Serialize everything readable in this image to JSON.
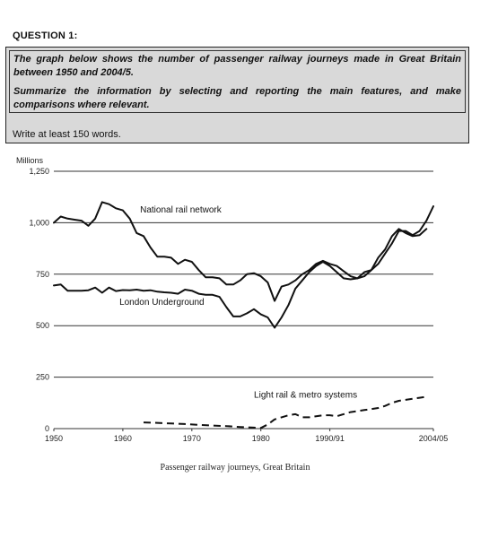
{
  "question": {
    "heading": "QUESTION 1:",
    "prompt_line1": "The graph below shows the number of passenger railway journeys made in Great Britain between 1950 and 2004/5.",
    "prompt_line2": "Summarize the information by selecting and reporting the main features, and make comparisons where relevant.",
    "instruction": "Write at least 150 words."
  },
  "chart_data": {
    "type": "line",
    "title": "Passenger railway journeys, Great Britain",
    "ylabel": "Millions",
    "ylim": [
      0,
      1250
    ],
    "xlim": [
      1950,
      2005
    ],
    "y_ticks": [
      0,
      250,
      500,
      750,
      1000,
      1250
    ],
    "y_tick_labels": [
      "0",
      "250",
      "500",
      "750",
      "1,000",
      "1,250"
    ],
    "x_ticks": [
      1950,
      1960,
      1970,
      1980,
      1990,
      2005
    ],
    "x_tick_labels": [
      "1950",
      "1960",
      "1970",
      "1980",
      "1990/91",
      "2004/05"
    ],
    "grid": "horizontal",
    "legend": "none",
    "series": [
      {
        "name": "National rail network",
        "style": "solid",
        "color": "#111111",
        "points": [
          [
            1950,
            1000
          ],
          [
            1951,
            1030
          ],
          [
            1952,
            1020
          ],
          [
            1953,
            1015
          ],
          [
            1954,
            1010
          ],
          [
            1955,
            985
          ],
          [
            1956,
            1020
          ],
          [
            1957,
            1100
          ],
          [
            1958,
            1090
          ],
          [
            1959,
            1070
          ],
          [
            1960,
            1060
          ],
          [
            1961,
            1020
          ],
          [
            1962,
            950
          ],
          [
            1963,
            935
          ],
          [
            1964,
            880
          ],
          [
            1965,
            835
          ],
          [
            1966,
            835
          ],
          [
            1967,
            830
          ],
          [
            1968,
            800
          ],
          [
            1969,
            820
          ],
          [
            1970,
            810
          ],
          [
            1971,
            770
          ],
          [
            1972,
            735
          ],
          [
            1973,
            735
          ],
          [
            1974,
            730
          ],
          [
            1975,
            700
          ],
          [
            1976,
            700
          ],
          [
            1977,
            720
          ],
          [
            1978,
            750
          ],
          [
            1979,
            755
          ],
          [
            1980,
            740
          ],
          [
            1981,
            710
          ],
          [
            1982,
            620
          ],
          [
            1983,
            690
          ],
          [
            1984,
            700
          ],
          [
            1985,
            720
          ],
          [
            1986,
            750
          ],
          [
            1987,
            770
          ],
          [
            1988,
            800
          ],
          [
            1989,
            815
          ],
          [
            1990,
            800
          ],
          [
            1991,
            790
          ],
          [
            1992,
            765
          ],
          [
            1993,
            740
          ],
          [
            1994,
            730
          ],
          [
            1995,
            740
          ],
          [
            1996,
            770
          ],
          [
            1997,
            800
          ],
          [
            1998,
            850
          ],
          [
            1999,
            900
          ],
          [
            2000,
            960
          ],
          [
            2001,
            960
          ],
          [
            2002,
            940
          ],
          [
            2003,
            960
          ],
          [
            2004,
            1010
          ],
          [
            2005,
            1080
          ]
        ]
      },
      {
        "name": "London Underground",
        "style": "solid",
        "color": "#111111",
        "points": [
          [
            1950,
            695
          ],
          [
            1951,
            700
          ],
          [
            1952,
            670
          ],
          [
            1953,
            670
          ],
          [
            1954,
            670
          ],
          [
            1955,
            672
          ],
          [
            1956,
            685
          ],
          [
            1957,
            660
          ],
          [
            1958,
            685
          ],
          [
            1959,
            668
          ],
          [
            1960,
            673
          ],
          [
            1961,
            672
          ],
          [
            1962,
            675
          ],
          [
            1963,
            670
          ],
          [
            1964,
            672
          ],
          [
            1965,
            665
          ],
          [
            1966,
            662
          ],
          [
            1967,
            660
          ],
          [
            1968,
            655
          ],
          [
            1969,
            675
          ],
          [
            1970,
            670
          ],
          [
            1971,
            655
          ],
          [
            1972,
            650
          ],
          [
            1973,
            650
          ],
          [
            1974,
            640
          ],
          [
            1975,
            590
          ],
          [
            1976,
            545
          ],
          [
            1977,
            545
          ],
          [
            1978,
            560
          ],
          [
            1979,
            580
          ],
          [
            1980,
            555
          ],
          [
            1981,
            540
          ],
          [
            1982,
            490
          ],
          [
            1983,
            540
          ],
          [
            1984,
            600
          ],
          [
            1985,
            680
          ],
          [
            1986,
            720
          ],
          [
            1987,
            760
          ],
          [
            1988,
            790
          ],
          [
            1989,
            810
          ],
          [
            1990,
            790
          ],
          [
            1991,
            760
          ],
          [
            1992,
            730
          ],
          [
            1993,
            725
          ],
          [
            1994,
            730
          ],
          [
            1995,
            760
          ],
          [
            1996,
            770
          ],
          [
            1997,
            830
          ],
          [
            1998,
            870
          ],
          [
            1999,
            935
          ],
          [
            2000,
            970
          ],
          [
            2001,
            950
          ],
          [
            2002,
            935
          ],
          [
            2003,
            940
          ],
          [
            2004,
            970
          ]
        ]
      },
      {
        "name": "Light rail & metro systems",
        "style": "dashed",
        "color": "#111111",
        "points": [
          [
            1963,
            30
          ],
          [
            1965,
            28
          ],
          [
            1967,
            25
          ],
          [
            1969,
            22
          ],
          [
            1971,
            18
          ],
          [
            1973,
            15
          ],
          [
            1975,
            12
          ],
          [
            1977,
            8
          ],
          [
            1979,
            5
          ],
          [
            1980,
            3
          ],
          [
            1981,
            20
          ],
          [
            1982,
            45
          ],
          [
            1983,
            55
          ],
          [
            1984,
            65
          ],
          [
            1985,
            70
          ],
          [
            1986,
            55
          ],
          [
            1987,
            55
          ],
          [
            1988,
            60
          ],
          [
            1989,
            65
          ],
          [
            1990,
            65
          ],
          [
            1991,
            60
          ],
          [
            1992,
            70
          ],
          [
            1993,
            80
          ],
          [
            1994,
            85
          ],
          [
            1995,
            90
          ],
          [
            1996,
            95
          ],
          [
            1997,
            100
          ],
          [
            1998,
            110
          ],
          [
            1999,
            125
          ],
          [
            2000,
            135
          ],
          [
            2001,
            140
          ],
          [
            2002,
            145
          ],
          [
            2003,
            150
          ],
          [
            2004,
            155
          ]
        ]
      }
    ],
    "annotations": [
      {
        "text": "National rail network",
        "x": 1962.5,
        "y": 1050
      },
      {
        "text": "London Underground",
        "x": 1959.5,
        "y": 600
      },
      {
        "text": "Light rail & metro systems",
        "x": 1979,
        "y": 150
      }
    ]
  }
}
